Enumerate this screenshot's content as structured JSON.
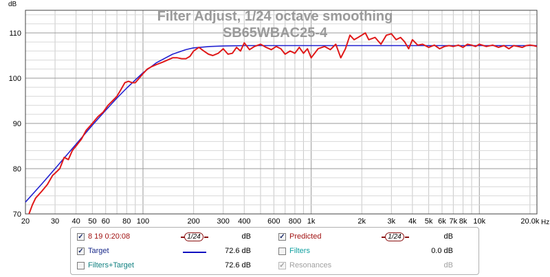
{
  "chart_data": {
    "type": "line",
    "title": "Filter Adjust, 1/24 octave smoothing",
    "subtitle": "SB65WBAC25-4",
    "ylabel": "dB",
    "xlabel": "Hz",
    "x_scale": "log",
    "xlim": [
      20,
      22000
    ],
    "ylim": [
      70,
      115
    ],
    "grid": true,
    "x_ticks": [
      {
        "v": 20,
        "label": "20"
      },
      {
        "v": 30,
        "label": "30"
      },
      {
        "v": 40,
        "label": "40"
      },
      {
        "v": 50,
        "label": "50"
      },
      {
        "v": 60,
        "label": "60"
      },
      {
        "v": 80,
        "label": "80"
      },
      {
        "v": 100,
        "label": "100"
      },
      {
        "v": 200,
        "label": "200"
      },
      {
        "v": 300,
        "label": "300"
      },
      {
        "v": 400,
        "label": "400"
      },
      {
        "v": 600,
        "label": "600"
      },
      {
        "v": 800,
        "label": "800"
      },
      {
        "v": 1000,
        "label": "1k"
      },
      {
        "v": 2000,
        "label": "2k"
      },
      {
        "v": 3000,
        "label": "3k"
      },
      {
        "v": 4000,
        "label": "4k"
      },
      {
        "v": 5000,
        "label": "5k"
      },
      {
        "v": 6000,
        "label": "6k"
      },
      {
        "v": 7000,
        "label": "7k"
      },
      {
        "v": 8000,
        "label": "8k"
      },
      {
        "v": 10000,
        "label": "10k"
      },
      {
        "v": 20000,
        "label": "20.0k"
      }
    ],
    "y_ticks": [
      {
        "v": 70,
        "label": "70"
      },
      {
        "v": 80,
        "label": "80"
      },
      {
        "v": 90,
        "label": "90"
      },
      {
        "v": 100,
        "label": "100"
      },
      {
        "v": 110,
        "label": "110"
      }
    ],
    "series": [
      {
        "name": "Predicted",
        "color": "#e01818",
        "x": [
          21,
          22,
          23,
          25,
          27,
          29,
          30,
          32,
          34,
          36,
          38,
          40,
          43,
          46,
          50,
          54,
          58,
          62,
          66,
          70,
          74,
          78,
          82,
          86,
          90,
          95,
          100,
          106,
          112,
          120,
          130,
          140,
          150,
          160,
          170,
          180,
          190,
          200,
          215,
          230,
          245,
          260,
          280,
          300,
          320,
          340,
          360,
          380,
          400,
          430,
          460,
          500,
          540,
          580,
          620,
          660,
          700,
          750,
          800,
          850,
          900,
          950,
          1000,
          1100,
          1200,
          1300,
          1400,
          1500,
          1600,
          1700,
          1800,
          1900,
          2000,
          2100,
          2200,
          2400,
          2600,
          2800,
          3000,
          3200,
          3400,
          3600,
          3800,
          4000,
          4300,
          4600,
          5000,
          5400,
          5800,
          6200,
          6600,
          7000,
          7500,
          8000,
          8500,
          9000,
          9500,
          10000,
          11000,
          12000,
          13000,
          14000,
          15000,
          16000,
          17000,
          18000,
          19000,
          20000,
          21000,
          22000
        ],
        "y": [
          70.0,
          72.0,
          73.5,
          75.0,
          76.5,
          78.5,
          79.0,
          80.0,
          82.5,
          82.0,
          84.0,
          85.0,
          86.5,
          88.5,
          90.0,
          91.5,
          92.5,
          94.0,
          95.0,
          96.0,
          97.5,
          99.0,
          99.3,
          99.0,
          99.0,
          100.0,
          101.0,
          102.0,
          102.5,
          103.0,
          103.5,
          104.0,
          104.5,
          104.5,
          104.3,
          104.3,
          104.8,
          106.0,
          106.8,
          106.0,
          105.3,
          105.0,
          105.5,
          106.5,
          105.3,
          105.5,
          106.8,
          106.0,
          107.8,
          106.3,
          107.0,
          107.5,
          106.8,
          106.3,
          107.0,
          106.5,
          105.3,
          106.0,
          105.5,
          106.8,
          105.5,
          106.5,
          104.5,
          106.5,
          107.0,
          106.3,
          107.5,
          104.5,
          106.5,
          109.5,
          108.5,
          109.0,
          109.5,
          110.0,
          108.5,
          109.0,
          107.5,
          109.5,
          109.8,
          108.5,
          109.0,
          108.0,
          106.5,
          108.5,
          107.3,
          107.5,
          106.8,
          107.3,
          106.5,
          107.0,
          107.2,
          107.0,
          107.3,
          106.8,
          107.5,
          107.3,
          107.0,
          107.5,
          107.0,
          107.3,
          106.8,
          107.2,
          106.5,
          107.2,
          107.0,
          106.8,
          107.2,
          107.3,
          107.2,
          107.0
        ]
      },
      {
        "name": "Target",
        "color": "#2020d0",
        "x": [
          20,
          25,
          30,
          40,
          50,
          60,
          70,
          80,
          100,
          120,
          150,
          180,
          200,
          250,
          300,
          400,
          500,
          1000,
          2000,
          5000,
          10000,
          22000
        ],
        "y": [
          72.6,
          76.6,
          80.0,
          85.4,
          89.6,
          92.9,
          95.6,
          97.8,
          101.2,
          103.4,
          105.3,
          106.3,
          106.7,
          107.0,
          107.1,
          107.2,
          107.2,
          107.2,
          107.2,
          107.2,
          107.2,
          107.2
        ]
      }
    ]
  },
  "legend": {
    "rows": [
      {
        "left": {
          "checked": true,
          "disabled": false,
          "label": "8 19 0:20:08",
          "color": "#a01010",
          "swatch": "smooth",
          "smooth_text": "1/24",
          "value": "dB"
        },
        "right": {
          "checked": true,
          "disabled": false,
          "label": "Predicted",
          "color": "#a01010",
          "swatch": "smooth",
          "smooth_text": "1/24",
          "value": "dB"
        }
      },
      {
        "left": {
          "checked": true,
          "disabled": false,
          "label": "Target",
          "color": "#1a2a8a",
          "swatch": "line",
          "swatch_color": "#1010c0",
          "value": "72.6 dB"
        },
        "right": {
          "checked": false,
          "disabled": false,
          "label": "Filters",
          "color": "#10a0a0",
          "swatch": "none",
          "value": "0.0 dB"
        }
      },
      {
        "left": {
          "checked": false,
          "disabled": false,
          "label": "Filters+Target",
          "color": "#108080",
          "swatch": "none",
          "value": "72.6 dB"
        },
        "right": {
          "checked": true,
          "disabled": true,
          "label": "Resonances",
          "color": "#a0a0a0",
          "swatch": "none",
          "value": "dB"
        }
      }
    ]
  }
}
